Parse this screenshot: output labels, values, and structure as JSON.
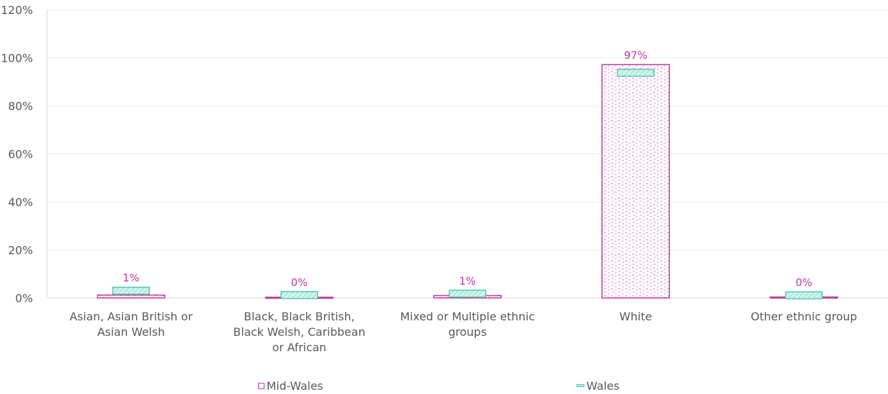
{
  "chart_data": {
    "type": "bar",
    "categories": [
      [
        "Asian, Asian British or",
        "Asian Welsh"
      ],
      [
        "Black, Black British,",
        "Black Welsh, Caribbean",
        "or African"
      ],
      [
        "Mixed or Multiple ethnic",
        "groups"
      ],
      [
        "White"
      ],
      [
        "Other ethnic group"
      ]
    ],
    "series": [
      {
        "name": "Mid-Wales",
        "values": [
          1.2,
          0.3,
          1.0,
          97.2,
          0.4
        ],
        "data_labels": [
          "1%",
          "0%",
          "1%",
          "97%",
          "0%"
        ],
        "style": "bar",
        "stroke": "#c0399f",
        "fill_pattern": "pink-dots"
      },
      {
        "name": "Wales",
        "values": [
          3.0,
          1.2,
          1.8,
          93.8,
          1.1
        ],
        "style": "marker",
        "stroke": "#3cc5a8",
        "fill": "#c8f0e6"
      }
    ],
    "y_ticks": [
      "0%",
      "20%",
      "40%",
      "60%",
      "80%",
      "100%",
      "120%"
    ],
    "ylim": [
      0,
      120
    ],
    "grid": true,
    "legend_position": "bottom"
  }
}
